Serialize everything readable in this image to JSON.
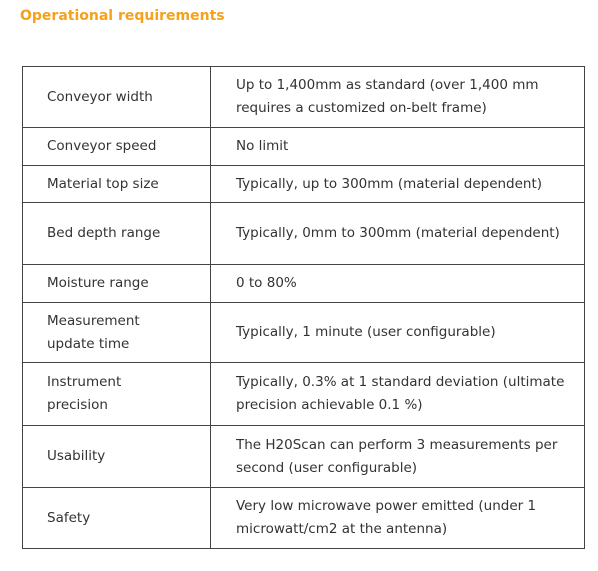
{
  "header": {
    "title": "Operational requirements"
  },
  "table": {
    "rows": [
      [
        "Conveyor width",
        "Up to 1,400mm as standard (over 1,400 mm requires a customized on-belt frame)"
      ],
      [
        "Conveyor speed",
        "No limit"
      ],
      [
        "Material top size",
        "Typically, up to 300mm (material dependent)"
      ],
      [
        "Bed depth range",
        "Typically, 0mm to 300mm (material dependent)"
      ],
      [
        "Moisture range",
        "0 to 80%"
      ],
      [
        "Measurement update time",
        "Typically, 1 minute (user configurable)"
      ],
      [
        "Instrument precision",
        "Typically, 0.3% at 1 standard deviation (ultimate precision achievable 0.1 %)"
      ],
      [
        "Usability",
        "The H20Scan can perform 3 measurements per second (user configurable)"
      ],
      [
        "Safety",
        "Very low microwave power emitted (under 1 microwatt/cm2 at the antenna)"
      ]
    ]
  }
}
